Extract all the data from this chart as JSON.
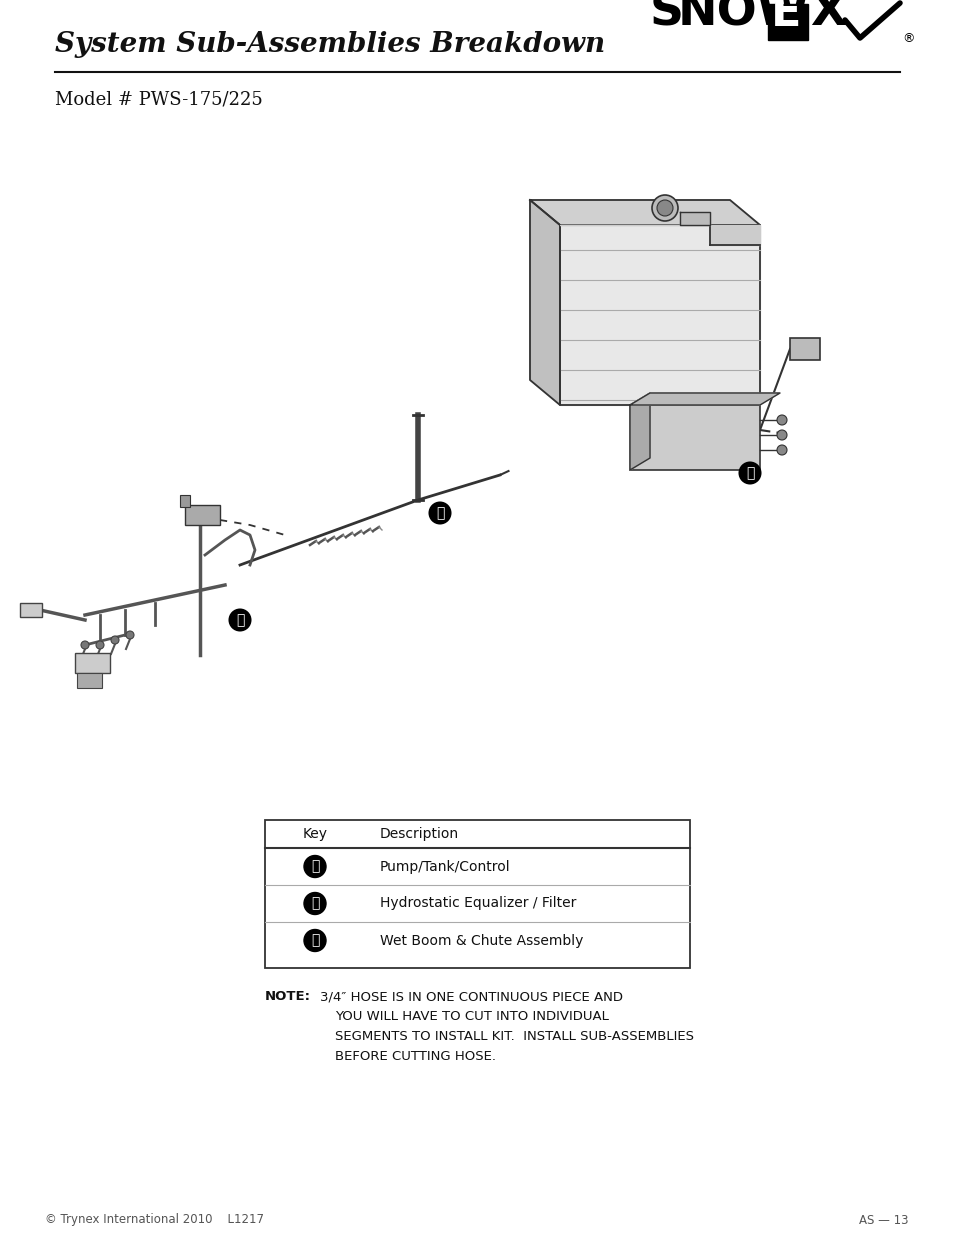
{
  "title": "System Sub-Assemblies Breakdown",
  "subtitle": "Model # PWS-175/225",
  "bg_color": "#ffffff",
  "title_fontsize": 20,
  "subtitle_fontsize": 13,
  "table_headers": [
    "Key",
    "Description"
  ],
  "table_rows": [
    [
      "Ⓐ",
      "Pump/Tank/Control"
    ],
    [
      "Ⓑ",
      "Hydrostatic Equalizer / Filter"
    ],
    [
      "Ⓒ",
      "Wet Boom & Chute Assembly"
    ]
  ],
  "note_label": "NOTE:",
  "note_lines": [
    "3/4″ HOSE IS IN ONE CONTINUOUS PIECE AND",
    "YOU WILL HAVE TO CUT INTO INDIVIDUAL",
    "SEGMENTS TO INSTALL KIT.  INSTALL SUB-ASSEMBLIES",
    "BEFORE CUTTING HOSE."
  ],
  "footer_left": "© Trynex International 2010    L1217",
  "footer_right": "AS — 13",
  "label_A": "Ⓐ",
  "label_B": "Ⓑ",
  "label_C": "Ⓒ"
}
